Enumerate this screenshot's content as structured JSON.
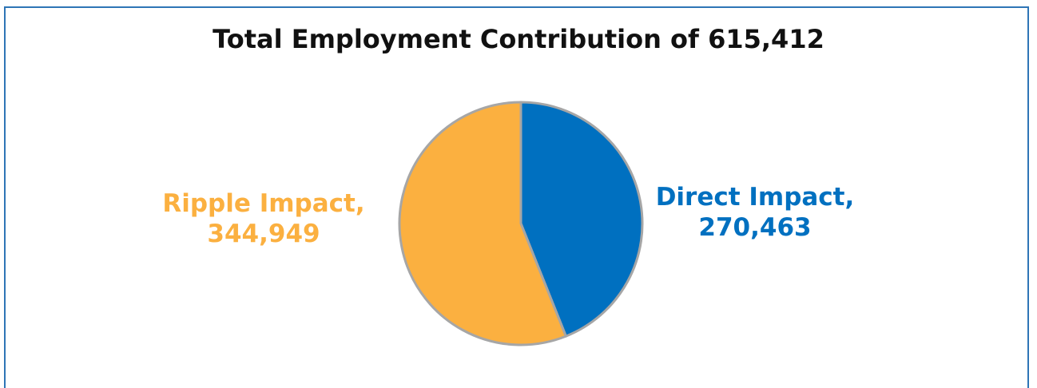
{
  "chart_data": {
    "type": "pie",
    "title": "Total Employment Contribution of 615,412",
    "series": [
      {
        "name": "Direct Impact",
        "value": 270463,
        "value_label": "270,463",
        "color": "#0070c0"
      },
      {
        "name": "Ripple Impact",
        "value": 344949,
        "value_label": "344,949",
        "color": "#fbb040"
      }
    ],
    "start": "12 o'clock",
    "direction": "clockwise",
    "slice_border_color": "#a6a6a6",
    "legend": "none"
  }
}
